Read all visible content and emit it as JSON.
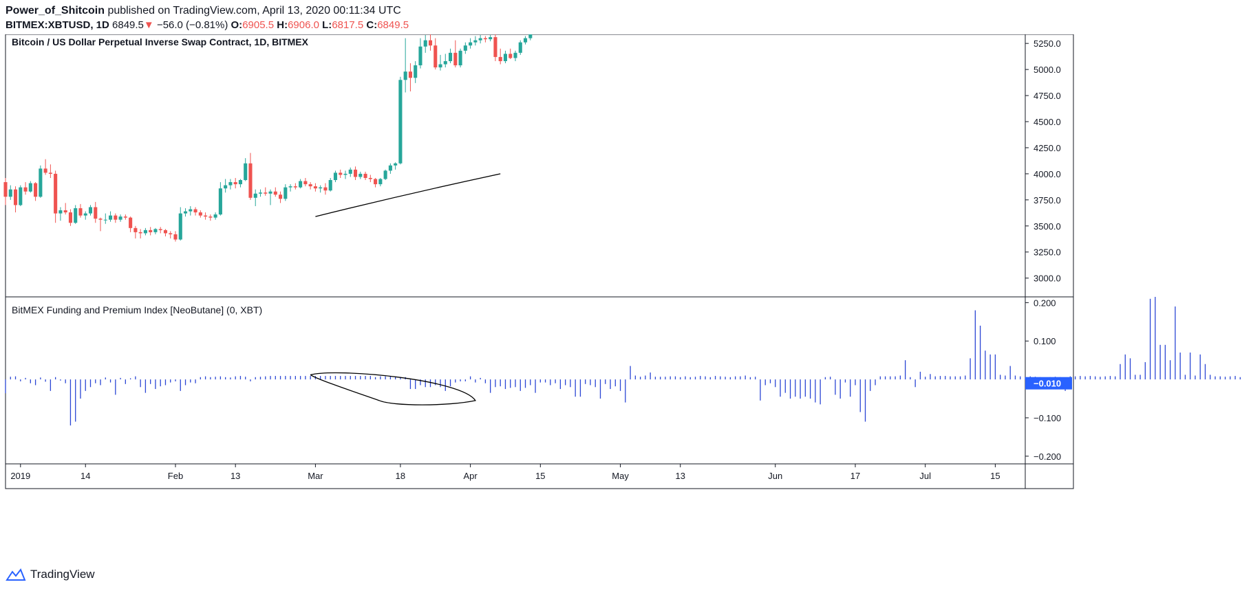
{
  "header": {
    "author": "Power_of_Shitcoin",
    "published_text": "published on TradingView.com, April 13, 2020 00:11:34 UTC",
    "symbol": "BITMEX:XBTUSD, 1D",
    "last": "6849.5",
    "change": "−56.0 (−0.81%)",
    "o_label": "O:",
    "o": "6905.5",
    "h_label": "H:",
    "h": "6906.0",
    "l_label": "L:",
    "l": "6817.5",
    "c_label": "C:",
    "c": "6849.5",
    "down_arrow": "▼"
  },
  "footer": {
    "brand": "TradingView",
    "logo_icon": "tradingview-logo-icon"
  },
  "colors": {
    "up": "#26a69a",
    "down": "#ef5350",
    "index": "#2a45d4",
    "badge": "#2962ff",
    "grid": "#e0e3eb",
    "axis": "#131722"
  },
  "chart_data": [
    {
      "type": "candlestick",
      "title": "Bitcoin / US Dollar Perpetual Inverse Swap Contract, 1D, BITMEX",
      "y_ticks": [
        5250.0,
        5000.0,
        4750.0,
        4500.0,
        4250.0,
        4000.0,
        3750.0,
        3500.0,
        3250.0,
        3000.0
      ],
      "y_tick_labels": [
        "5250.0",
        "5000.0",
        "4750.0",
        "4500.0",
        "4250.0",
        "4000.0",
        "3750.0",
        "3500.0",
        "3250.0",
        "3000.0"
      ],
      "ylim": [
        2820,
        5350
      ],
      "x_tick_labels": [
        "2019",
        "14",
        "Feb",
        "13",
        "Mar",
        "18",
        "Apr",
        "15",
        "May",
        "13",
        "Jun",
        "17",
        "Jul",
        "15"
      ],
      "x_tick_dates": [
        "2019-01-01",
        "2019-01-14",
        "2019-02-01",
        "2019-02-13",
        "2019-03-01",
        "2019-03-18",
        "2019-04-01",
        "2019-04-15",
        "2019-05-01",
        "2019-05-13",
        "2019-06-01",
        "2019-06-17",
        "2019-07-01",
        "2019-07-15"
      ],
      "xlim": [
        "2018-12-29",
        "2019-07-21"
      ],
      "series": [
        {
          "start_date": "2018-12-29",
          "ohlc": [
            [
              3920,
              3960,
              3700,
              3780
            ],
            [
              3780,
              3890,
              3750,
              3850
            ],
            [
              3850,
              3880,
              3630,
              3700
            ],
            [
              3700,
              3890,
              3690,
              3870
            ],
            [
              3870,
              3920,
              3800,
              3830
            ],
            [
              3830,
              3930,
              3820,
              3910
            ],
            [
              3910,
              3920,
              3740,
              3780
            ],
            [
              3780,
              4080,
              3770,
              4050
            ],
            [
              4050,
              4140,
              3990,
              4010
            ],
            [
              4010,
              4090,
              3960,
              4000
            ],
            [
              4000,
              4030,
              3530,
              3620
            ],
            [
              3620,
              3680,
              3550,
              3650
            ],
            [
              3650,
              3720,
              3610,
              3630
            ],
            [
              3630,
              3660,
              3500,
              3530
            ],
            [
              3530,
              3700,
              3520,
              3670
            ],
            [
              3670,
              3710,
              3580,
              3600
            ],
            [
              3600,
              3640,
              3560,
              3620
            ],
            [
              3620,
              3700,
              3600,
              3680
            ],
            [
              3680,
              3730,
              3530,
              3570
            ],
            [
              3570,
              3580,
              3450,
              3560
            ],
            [
              3560,
              3620,
              3520,
              3560
            ],
            [
              3560,
              3640,
              3540,
              3600
            ],
            [
              3600,
              3620,
              3530,
              3560
            ],
            [
              3560,
              3610,
              3540,
              3590
            ],
            [
              3590,
              3610,
              3560,
              3580
            ],
            [
              3580,
              3590,
              3440,
              3480
            ],
            [
              3480,
              3500,
              3380,
              3440
            ],
            [
              3440,
              3470,
              3380,
              3430
            ],
            [
              3430,
              3480,
              3410,
              3460
            ],
            [
              3460,
              3490,
              3410,
              3440
            ],
            [
              3440,
              3480,
              3420,
              3470
            ],
            [
              3470,
              3490,
              3430,
              3460
            ],
            [
              3460,
              3470,
              3400,
              3430
            ],
            [
              3430,
              3450,
              3380,
              3420
            ],
            [
              3420,
              3450,
              3350,
              3370
            ],
            [
              3370,
              3680,
              3360,
              3620
            ],
            [
              3620,
              3670,
              3590,
              3640
            ],
            [
              3640,
              3690,
              3600,
              3660
            ],
            [
              3660,
              3680,
              3600,
              3630
            ],
            [
              3630,
              3650,
              3580,
              3600
            ],
            [
              3600,
              3630,
              3560,
              3590
            ],
            [
              3590,
              3610,
              3550,
              3580
            ],
            [
              3580,
              3630,
              3560,
              3610
            ],
            [
              3610,
              3920,
              3600,
              3860
            ],
            [
              3860,
              3950,
              3820,
              3890
            ],
            [
              3890,
              3950,
              3850,
              3920
            ],
            [
              3920,
              3960,
              3860,
              3900
            ],
            [
              3900,
              3950,
              3870,
              3940
            ],
            [
              3940,
              4150,
              3930,
              4100
            ],
            [
              4100,
              4200,
              3750,
              3770
            ],
            [
              3770,
              3850,
              3690,
              3810
            ],
            [
              3810,
              3850,
              3780,
              3820
            ],
            [
              3820,
              3870,
              3790,
              3810
            ],
            [
              3810,
              3850,
              3700,
              3830
            ],
            [
              3830,
              3870,
              3780,
              3800
            ],
            [
              3800,
              3830,
              3720,
              3760
            ],
            [
              3760,
              3900,
              3740,
              3870
            ],
            [
              3870,
              3900,
              3830,
              3880
            ],
            [
              3880,
              3910,
              3850,
              3870
            ],
            [
              3870,
              3950,
              3860,
              3930
            ],
            [
              3930,
              3960,
              3880,
              3900
            ],
            [
              3900,
              3920,
              3850,
              3880
            ],
            [
              3880,
              3910,
              3830,
              3860
            ],
            [
              3860,
              3890,
              3820,
              3870
            ],
            [
              3870,
              3910,
              3800,
              3840
            ],
            [
              3840,
              3960,
              3830,
              3940
            ],
            [
              3940,
              4030,
              3920,
              4010
            ],
            [
              4010,
              4040,
              3960,
              3990
            ],
            [
              3990,
              4030,
              3950,
              4000
            ],
            [
              4000,
              4060,
              3970,
              4040
            ],
            [
              4040,
              4070,
              3940,
              3970
            ],
            [
              3970,
              4020,
              3950,
              4000
            ],
            [
              4000,
              4020,
              3940,
              3960
            ],
            [
              3960,
              3990,
              3920,
              3950
            ],
            [
              3950,
              3960,
              3870,
              3900
            ],
            [
              3900,
              3960,
              3880,
              3950
            ],
            [
              3950,
              4040,
              3940,
              4030
            ],
            [
              4030,
              4100,
              4000,
              4080
            ],
            [
              4080,
              4110,
              4040,
              4100
            ],
            [
              4100,
              4930,
              4090,
              4900
            ],
            [
              4900,
              5300,
              4780,
              4980
            ],
            [
              4980,
              5060,
              4790,
              4920
            ],
            [
              4920,
              5080,
              4870,
              5040
            ],
            [
              5040,
              5300,
              5010,
              5220
            ],
            [
              5220,
              5330,
              5160,
              5280
            ],
            [
              5280,
              5340,
              5180,
              5230
            ],
            [
              5230,
              5300,
              5000,
              5020
            ],
            [
              5020,
              5140,
              4990,
              5050
            ],
            [
              5050,
              5150,
              5020,
              5080
            ],
            [
              5080,
              5200,
              5060,
              5160
            ],
            [
              5160,
              5280,
              5020,
              5040
            ],
            [
              5040,
              5200,
              5020,
              5180
            ],
            [
              5180,
              5260,
              5150,
              5230
            ],
            [
              5230,
              5300,
              5200,
              5260
            ],
            [
              5260,
              5320,
              5230,
              5280
            ],
            [
              5280,
              5330,
              5250,
              5300
            ],
            [
              5300,
              5320,
              5260,
              5290
            ],
            [
              5290,
              5330,
              5270,
              5310
            ],
            [
              5310,
              5340,
              5080,
              5120
            ],
            [
              5120,
              5200,
              5050,
              5080
            ],
            [
              5080,
              5180,
              5060,
              5150
            ],
            [
              5150,
              5200,
              5100,
              5110
            ],
            [
              5110,
              5180,
              5080,
              5160
            ],
            [
              5160,
              5280,
              5140,
              5260
            ],
            [
              5260,
              5320,
              5240,
              5300
            ],
            [
              5300,
              5350,
              5280,
              5340
            ]
          ]
        }
      ],
      "drawing": {
        "type": "trendline",
        "from": [
          "2019-03-01",
          3590
        ],
        "to": [
          "2019-04-07",
          4000
        ]
      }
    },
    {
      "type": "bar",
      "title": "BitMEX Funding and Premium Index [NeoButane] (0, XBT)",
      "y_ticks": [
        0.2,
        0.1,
        -0.1,
        -0.2
      ],
      "y_tick_labels": [
        "0.200",
        "0.100",
        "−0.100",
        "−0.200"
      ],
      "ylim": [
        -0.22,
        0.215
      ],
      "last_value_label": "−0.010",
      "x_start_date": "2018-12-29",
      "values": [
        -0.036,
        0.007,
        0.008,
        -0.005,
        0.004,
        -0.01,
        -0.015,
        0.005,
        -0.006,
        -0.03,
        0.006,
        -0.003,
        -0.01,
        -0.12,
        -0.11,
        -0.05,
        -0.03,
        -0.02,
        -0.01,
        -0.015,
        0.005,
        -0.008,
        -0.04,
        0.004,
        -0.012,
        0.003,
        0.008,
        -0.02,
        -0.035,
        -0.012,
        -0.025,
        -0.018,
        -0.015,
        -0.008,
        -0.005,
        -0.03,
        -0.015,
        -0.008,
        -0.01,
        0.006,
        0.008,
        0.006,
        0.007,
        0.008,
        0.006,
        0.005,
        0.008,
        0.009,
        0.007,
        -0.005,
        0.006,
        0.007,
        0.008,
        0.009,
        0.009,
        0.009,
        0.009,
        0.009,
        0.009,
        0.009,
        0.009,
        0.009,
        0.009,
        0.009,
        0.009,
        0.009,
        0.009,
        0.009,
        0.009,
        0.009,
        0.009,
        0.009,
        0.009,
        0.009,
        0.006,
        0.008,
        0.008,
        0.008,
        0.007,
        0.006,
        0.006,
        -0.025,
        -0.025,
        -0.015,
        -0.02,
        -0.02,
        -0.015,
        -0.02,
        -0.03,
        -0.018,
        -0.008,
        -0.005,
        -0.005,
        0.008,
        -0.008,
        0.004,
        -0.01,
        -0.035,
        -0.02,
        -0.018,
        -0.025,
        -0.022,
        -0.02,
        -0.03,
        -0.022,
        -0.015,
        -0.035,
        -0.008,
        -0.008,
        -0.015,
        -0.01,
        -0.025,
        -0.015,
        -0.02,
        -0.045,
        -0.045,
        -0.012,
        -0.015,
        -0.02,
        -0.05,
        -0.012,
        -0.025,
        -0.018,
        -0.03,
        -0.06,
        0.035,
        0.01,
        0.007,
        0.01,
        0.018,
        0.007,
        0.007,
        0.007,
        0.008,
        0.008,
        0.006,
        0.008,
        0.006,
        0.007,
        0.009,
        0.008,
        0.006,
        0.009,
        0.008,
        0.007,
        0.006,
        0.008,
        0.008,
        0.01,
        0.006,
        0.007,
        -0.055,
        -0.015,
        -0.01,
        -0.02,
        -0.045,
        -0.035,
        -0.05,
        -0.045,
        -0.05,
        -0.045,
        -0.05,
        -0.06,
        -0.065,
        0.006,
        0.007,
        -0.04,
        -0.05,
        -0.008,
        -0.045,
        -0.015,
        -0.085,
        -0.11,
        -0.03,
        -0.015,
        0.008,
        0.008,
        0.008,
        0.008,
        0.01,
        0.05,
        0.006,
        -0.02,
        0.02,
        0.007,
        0.014,
        0.008,
        0.009,
        0.009,
        0.008,
        0.008,
        0.008,
        0.01,
        0.055,
        0.18,
        0.14,
        0.075,
        0.065,
        0.065,
        0.012,
        0.01,
        0.035,
        0.01,
        0.008,
        0.006,
        0.008,
        0.007,
        0.006,
        -0.013,
        0.006,
        0.007,
        0.006,
        -0.03,
        0.008,
        0.008,
        0.009,
        0.008,
        0.009,
        0.008,
        0.007,
        0.008,
        0.009,
        0.008,
        0.04,
        0.065,
        0.055,
        0.012,
        0.012,
        0.045,
        0.21,
        0.215,
        0.09,
        0.09,
        0.05,
        0.19,
        0.07,
        0.012,
        0.07,
        0.01,
        0.065,
        0.04,
        0.012,
        0.008,
        0.008,
        0.007,
        0.008,
        0.009,
        0.006,
        0.007,
        0.008,
        0.11,
        0.085,
        0.09,
        0.01,
        0.006,
        0.008,
        0.007,
        0.008,
        -0.025,
        -0.008,
        0.006,
        0.009,
        0.007,
        0.008,
        0.006,
        -0.01
      ]
    }
  ]
}
